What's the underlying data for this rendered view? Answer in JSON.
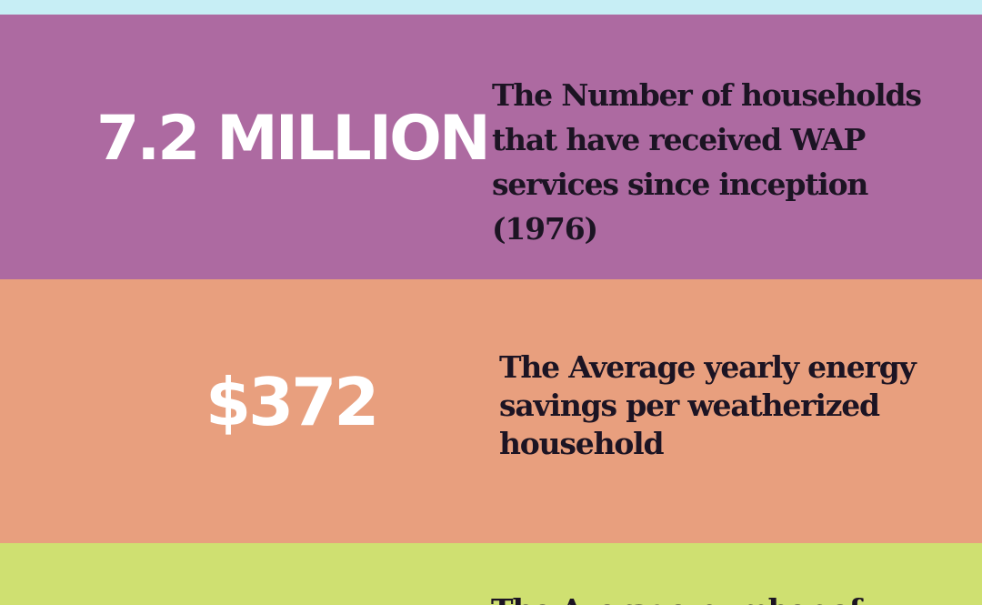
{
  "colors": {
    "top_band": "#c7eef5",
    "band_1": "#ad6aa1",
    "band_2": "#e89f7e",
    "band_3": "#cfe071",
    "stat_text": "#ffffff",
    "desc_text": "#1c1423"
  },
  "rows": [
    {
      "stat": "7.2 MILLION",
      "description": "The Number of households that have received WAP services since inception (1976)"
    },
    {
      "stat": "$372",
      "description": "The Average yearly energy savings per weatherized household"
    },
    {
      "stat": "",
      "description": "The Average number of"
    }
  ]
}
